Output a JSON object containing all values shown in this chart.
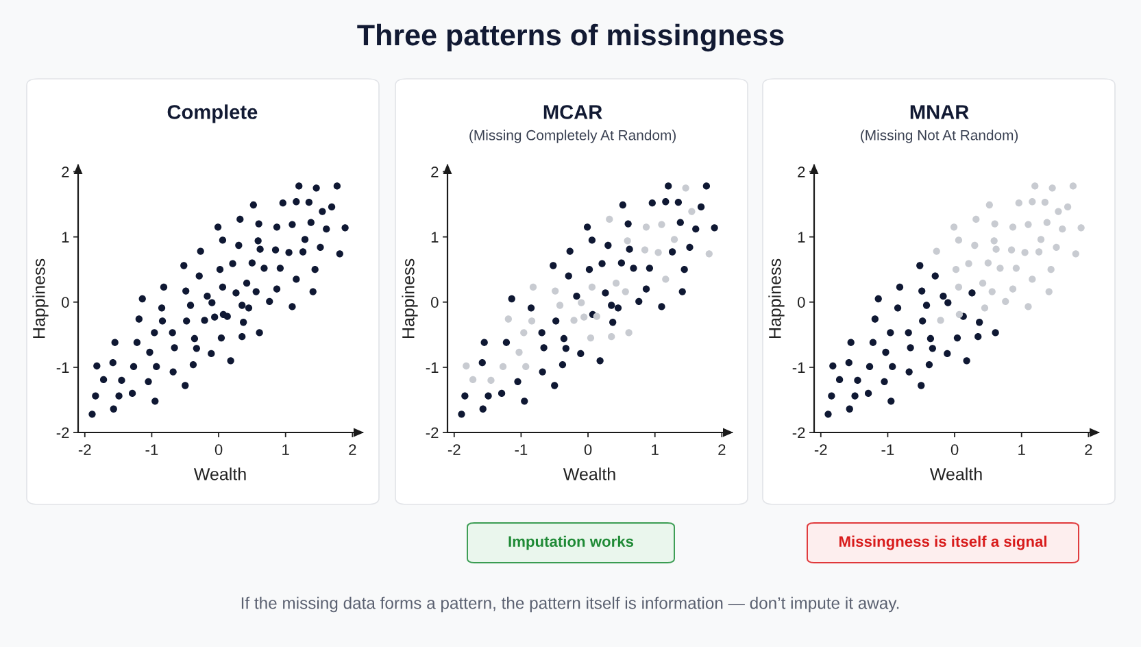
{
  "chart_data": [
    {
      "type": "scatter",
      "title": "Complete",
      "xlabel": "Wealth",
      "ylabel": "Happiness",
      "xlim": [
        -2.1,
        2.15
      ],
      "ylim": [
        -2,
        2.1
      ],
      "xticks": [
        -2,
        -1,
        0,
        1,
        2
      ],
      "yticks": [
        -2,
        -1,
        0,
        1,
        2
      ],
      "marker": "circle",
      "annotations": [
        "Three patterns of missingness"
      ],
      "series": [
        {
          "color": "#0f1833",
          "x": [
            -1.89,
            -1.84,
            -1.57,
            -1.72,
            -1.82,
            -1.45,
            -1.49,
            -1.29,
            -1.58,
            -1.55,
            -1.27,
            -1.22,
            -1.19,
            -1.14,
            -1.05,
            -1.03,
            -0.96,
            -0.95,
            -0.93,
            -0.85,
            -0.82,
            -0.84,
            -0.68,
            -0.69,
            -0.66,
            -0.5,
            -0.52,
            -0.49,
            -0.48,
            -0.42,
            -0.38,
            -0.36,
            -0.33,
            -0.27,
            -0.29,
            -0.21,
            -0.17,
            -0.11,
            -0.1,
            -0.06,
            -0.01,
            0.06,
            0.02,
            0.06,
            0.07,
            0.13,
            0.04,
            0.18,
            0.21,
            0.26,
            0.3,
            0.32,
            0.35,
            0.37,
            0.35,
            0.42,
            0.45,
            0.5,
            0.52,
            0.56,
            0.59,
            0.6,
            0.62,
            0.61,
            0.68,
            0.76,
            0.85,
            0.87,
            0.87,
            0.92,
            0.96,
            1.05,
            1.1,
            1.1,
            1.16,
            1.16,
            1.2,
            1.26,
            1.29,
            1.35,
            1.38,
            1.41,
            1.44,
            1.46,
            1.52,
            1.55,
            1.61,
            1.69,
            1.77,
            1.81,
            1.89
          ],
          "values": [
            -1.72,
            -1.44,
            -1.64,
            -1.19,
            -0.98,
            -1.2,
            -1.44,
            -1.4,
            -0.93,
            -0.62,
            -0.99,
            -0.62,
            -0.26,
            0.05,
            -1.22,
            -0.77,
            -0.47,
            -1.52,
            -0.99,
            -0.09,
            0.23,
            -0.29,
            -1.07,
            -0.47,
            -0.7,
            -1.28,
            0.56,
            0.17,
            -0.29,
            -0.05,
            -0.96,
            -0.56,
            -0.71,
            0.78,
            0.4,
            -0.28,
            0.09,
            -0.79,
            -0.01,
            -0.23,
            1.15,
            0.95,
            0.5,
            0.23,
            -0.19,
            -0.22,
            -0.55,
            -0.9,
            0.59,
            0.14,
            0.87,
            1.27,
            -0.05,
            -0.31,
            -0.53,
            0.29,
            -0.09,
            0.6,
            1.49,
            0.16,
            0.94,
            1.2,
            0.81,
            -0.47,
            0.52,
            0.01,
            0.8,
            1.15,
            0.2,
            0.52,
            1.52,
            0.76,
            -0.07,
            1.19,
            1.54,
            0.35,
            1.78,
            0.77,
            0.96,
            1.53,
            1.22,
            0.16,
            0.5,
            1.75,
            0.84,
            1.39,
            1.12,
            1.46,
            1.78,
            0.74,
            1.14
          ]
        }
      ]
    },
    {
      "type": "scatter",
      "title": "MCAR",
      "subtitle": "(Missing Completely At Random)",
      "xlabel": "Wealth",
      "ylabel": "Happiness",
      "xlim": [
        -2.1,
        2.15
      ],
      "ylim": [
        -2,
        2.1
      ],
      "xticks": [
        -2,
        -1,
        0,
        1,
        2
      ],
      "yticks": [
        -2,
        -1,
        0,
        1,
        2
      ],
      "marker": "circle",
      "annotations": [
        "Imputation works"
      ],
      "series": [
        {
          "color": "#0f1833",
          "x": [
            -1.89,
            -1.84,
            -1.57,
            -1.49,
            -1.29,
            -1.58,
            -1.55,
            -1.22,
            -1.14,
            -1.05,
            -0.95,
            -0.85,
            -0.68,
            -0.69,
            -0.66,
            -0.5,
            -0.52,
            -0.48,
            -0.38,
            -0.36,
            -0.33,
            -0.27,
            -0.29,
            -0.17,
            -0.11,
            -0.01,
            0.06,
            0.02,
            0.07,
            0.18,
            0.21,
            0.26,
            0.3,
            0.35,
            0.37,
            0.45,
            0.5,
            0.52,
            0.6,
            0.62,
            0.68,
            0.76,
            0.87,
            0.92,
            0.96,
            1.1,
            1.16,
            1.2,
            1.26,
            1.35,
            1.38,
            1.41,
            1.44,
            1.52,
            1.61,
            1.69,
            1.77,
            1.89
          ],
          "values": [
            -1.72,
            -1.44,
            -1.64,
            -1.44,
            -1.4,
            -0.93,
            -0.62,
            -0.62,
            0.05,
            -1.22,
            -1.52,
            -0.09,
            -1.07,
            -0.47,
            -0.7,
            -1.28,
            0.56,
            -0.29,
            -0.96,
            -0.56,
            -0.71,
            0.78,
            0.4,
            0.09,
            -0.79,
            1.15,
            0.95,
            0.5,
            -0.19,
            -0.9,
            0.59,
            0.14,
            0.87,
            -0.05,
            -0.31,
            -0.09,
            0.6,
            1.49,
            1.2,
            0.81,
            0.52,
            0.01,
            0.2,
            0.52,
            1.52,
            -0.07,
            1.54,
            1.78,
            0.77,
            1.53,
            1.22,
            0.16,
            0.5,
            0.84,
            1.12,
            1.46,
            1.78,
            1.14
          ]
        },
        {
          "color": "#c8cbd1",
          "x": [
            -1.72,
            -1.82,
            -1.45,
            -1.27,
            -1.19,
            -1.03,
            -0.96,
            -0.93,
            -0.82,
            -0.84,
            -0.49,
            -0.42,
            -0.21,
            -0.1,
            -0.06,
            0.06,
            0.13,
            0.04,
            0.32,
            0.35,
            0.42,
            0.56,
            0.59,
            0.61,
            0.85,
            0.87,
            1.05,
            1.1,
            1.16,
            1.29,
            1.46,
            1.55,
            1.81
          ],
          "values": [
            -1.19,
            -0.98,
            -1.2,
            -0.99,
            -0.26,
            -0.77,
            -0.47,
            -0.99,
            0.23,
            -0.29,
            0.17,
            -0.05,
            -0.28,
            -0.01,
            -0.23,
            0.23,
            -0.22,
            -0.55,
            1.27,
            -0.53,
            0.29,
            0.16,
            0.94,
            -0.47,
            0.8,
            1.15,
            0.76,
            1.19,
            0.35,
            0.96,
            1.75,
            1.39,
            0.74
          ]
        }
      ]
    },
    {
      "type": "scatter",
      "title": "MNAR",
      "subtitle": "(Missing Not At Random)",
      "xlabel": "Wealth",
      "ylabel": "Happiness",
      "xlim": [
        -2.1,
        2.15
      ],
      "ylim": [
        -2,
        2.1
      ],
      "xticks": [
        -2,
        -1,
        0,
        1,
        2
      ],
      "yticks": [
        -2,
        -1,
        0,
        1,
        2
      ],
      "marker": "circle",
      "annotations": [
        "Missingness is itself a signal",
        "If the missing data forms a pattern, the pattern itself is information — don’t impute it away."
      ],
      "series": [
        {
          "color": "#0f1833",
          "x": [
            -1.89,
            -1.84,
            -1.57,
            -1.72,
            -1.82,
            -1.45,
            -1.49,
            -1.29,
            -1.58,
            -1.55,
            -1.27,
            -1.22,
            -1.19,
            -1.14,
            -1.05,
            -1.03,
            -0.96,
            -0.95,
            -0.93,
            -0.85,
            -0.82,
            -0.68,
            -0.69,
            -0.66,
            -0.5,
            -0.52,
            -0.49,
            -0.48,
            -0.42,
            -0.38,
            -0.36,
            -0.33,
            -0.29,
            -0.17,
            -0.11,
            -0.1,
            0.13,
            0.04,
            0.18,
            0.26,
            0.37,
            0.35,
            0.61
          ],
          "values": [
            -1.72,
            -1.44,
            -1.64,
            -1.19,
            -0.98,
            -1.2,
            -1.44,
            -1.4,
            -0.93,
            -0.62,
            -0.99,
            -0.62,
            -0.26,
            0.05,
            -1.22,
            -0.77,
            -0.47,
            -1.52,
            -0.99,
            -0.09,
            0.23,
            -1.07,
            -0.47,
            -0.7,
            -1.28,
            0.56,
            0.17,
            -0.29,
            -0.05,
            -0.96,
            -0.56,
            -0.71,
            0.4,
            0.09,
            -0.79,
            -0.01,
            -0.22,
            -0.55,
            -0.9,
            0.14,
            -0.31,
            -0.53,
            -0.47
          ]
        },
        {
          "color": "#c8cbd1",
          "x": [
            -0.27,
            -0.21,
            -0.01,
            0.06,
            0.02,
            0.06,
            0.07,
            0.21,
            0.3,
            0.32,
            0.42,
            0.45,
            0.5,
            0.52,
            0.56,
            0.59,
            0.6,
            0.62,
            0.68,
            0.76,
            0.85,
            0.87,
            0.87,
            0.92,
            0.96,
            1.05,
            1.1,
            1.1,
            1.16,
            1.16,
            1.2,
            1.26,
            1.29,
            1.35,
            1.38,
            1.41,
            1.44,
            1.46,
            1.52,
            1.55,
            1.61,
            1.69,
            1.77,
            1.81,
            1.89
          ],
          "values": [
            0.78,
            -0.28,
            1.15,
            0.95,
            0.5,
            0.23,
            -0.19,
            0.59,
            0.87,
            1.27,
            0.29,
            -0.09,
            0.6,
            1.49,
            0.16,
            0.94,
            1.2,
            0.81,
            0.52,
            0.01,
            0.8,
            1.15,
            0.2,
            0.52,
            1.52,
            0.76,
            -0.07,
            1.19,
            1.54,
            0.35,
            1.78,
            0.77,
            0.96,
            1.53,
            1.22,
            0.16,
            0.5,
            1.75,
            0.84,
            1.39,
            1.12,
            1.46,
            1.78,
            0.74,
            1.14
          ]
        }
      ]
    }
  ]
}
